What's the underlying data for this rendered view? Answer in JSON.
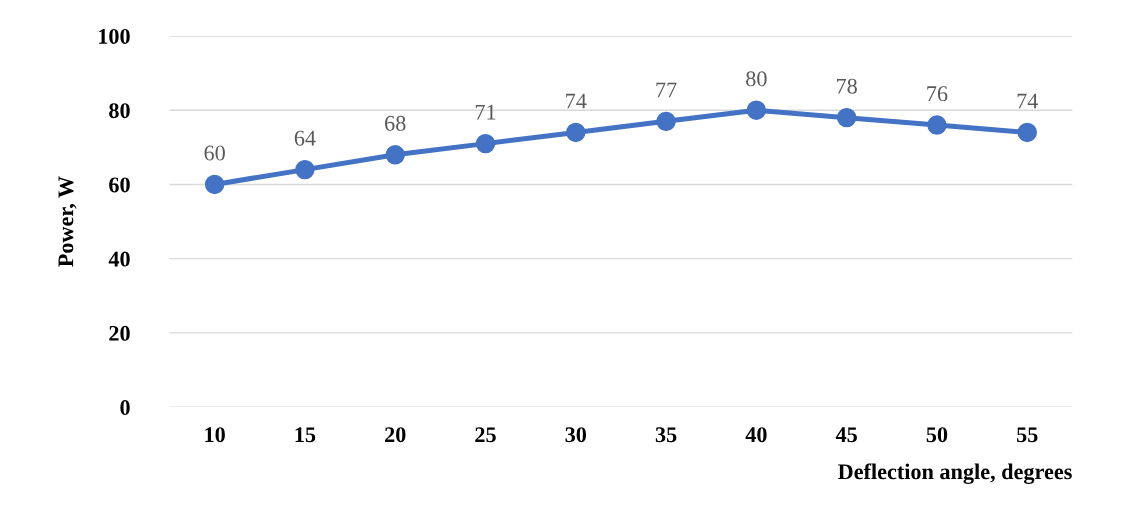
{
  "chart_data": {
    "type": "line",
    "xlabel": "Deflection angle, degrees",
    "ylabel": "Power, W",
    "categories": [
      "10",
      "15",
      "20",
      "25",
      "30",
      "35",
      "40",
      "45",
      "50",
      "55"
    ],
    "series": [
      {
        "color": "#4472c4",
        "values": [
          60,
          64,
          68,
          71,
          74,
          77,
          80,
          78,
          76,
          74
        ]
      }
    ],
    "ylim": [
      0,
      100
    ],
    "yticks": [
      0,
      20,
      40,
      60,
      80,
      100
    ],
    "grid": "y",
    "marker": "circle",
    "line_style": "solid",
    "data_labels": true
  }
}
